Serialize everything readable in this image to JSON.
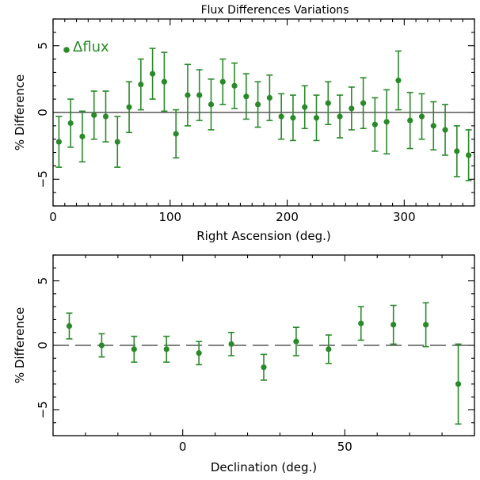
{
  "chart_data": [
    {
      "type": "scatter",
      "title": "Flux Differences Variations",
      "xlabel": "Right Ascension (deg.)",
      "ylabel": "% Difference",
      "xlim": [
        0,
        360
      ],
      "ylim": [
        -7,
        7
      ],
      "xticks": [
        0,
        100,
        200,
        300
      ],
      "yticks": [
        -5,
        0,
        5
      ],
      "zero_line": "solid",
      "legend": {
        "label": "Δflux",
        "placement": "top-left"
      },
      "series": [
        {
          "name": "Δflux",
          "color": "#2a8a2a",
          "x": [
            5,
            15,
            25,
            35,
            45,
            55,
            65,
            75,
            85,
            95,
            105,
            115,
            125,
            135,
            145,
            155,
            165,
            175,
            185,
            195,
            205,
            215,
            225,
            235,
            245,
            255,
            265,
            275,
            285,
            295,
            305,
            315,
            325,
            335,
            345,
            355
          ],
          "y": [
            -2.2,
            -0.8,
            -1.8,
            -0.2,
            -0.3,
            -2.2,
            0.4,
            2.1,
            2.9,
            2.3,
            -1.6,
            1.3,
            1.3,
            0.6,
            2.3,
            2.0,
            1.2,
            0.6,
            1.1,
            -0.3,
            -0.4,
            0.4,
            -0.4,
            0.7,
            -0.3,
            0.3,
            0.7,
            -0.9,
            -0.7,
            2.4,
            -0.6,
            -0.3,
            -1.0,
            -1.3,
            -2.9,
            -3.2
          ],
          "yerr": [
            1.9,
            1.8,
            1.9,
            1.8,
            1.9,
            1.9,
            1.9,
            1.9,
            1.9,
            2.2,
            1.8,
            2.3,
            1.9,
            1.9,
            1.7,
            1.7,
            1.7,
            1.7,
            1.7,
            1.7,
            1.7,
            1.6,
            1.7,
            1.6,
            1.6,
            1.6,
            1.9,
            2.0,
            2.4,
            2.2,
            2.1,
            1.7,
            1.8,
            1.9,
            1.9,
            1.9
          ]
        }
      ]
    },
    {
      "type": "scatter",
      "title": "",
      "xlabel": "Declination (deg.)",
      "ylabel": "% Difference",
      "xlim": [
        -40,
        90
      ],
      "ylim": [
        -7,
        7
      ],
      "xticks": [
        0,
        50
      ],
      "yticks": [
        -5,
        0,
        5
      ],
      "zero_line": "dashed",
      "series": [
        {
          "name": "",
          "color": "#2a8a2a",
          "x": [
            -35,
            -25,
            -15,
            -5,
            5,
            15,
            25,
            35,
            45,
            55,
            65,
            75,
            85
          ],
          "y": [
            1.5,
            0.0,
            -0.3,
            -0.3,
            -0.6,
            0.1,
            -1.7,
            0.3,
            -0.3,
            1.7,
            1.6,
            1.6,
            -3.0
          ],
          "yerr": [
            1.0,
            0.9,
            1.0,
            1.0,
            0.9,
            0.9,
            1.0,
            1.1,
            1.1,
            1.3,
            1.5,
            1.7,
            3.1
          ]
        }
      ]
    }
  ]
}
